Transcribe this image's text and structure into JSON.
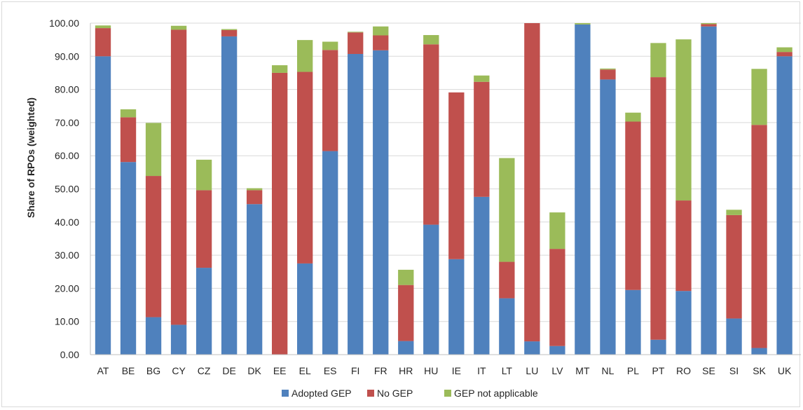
{
  "chart_data": {
    "type": "bar",
    "stacked": true,
    "title": "",
    "xlabel": "",
    "ylabel": "Share of RPOs (weighted)",
    "ylim": [
      0,
      100
    ],
    "ytick_step": 10,
    "ytick_format": "0.00",
    "grid": "horizontal",
    "legend_position": "bottom",
    "categories": [
      "AT",
      "BE",
      "BG",
      "CY",
      "CZ",
      "DE",
      "DK",
      "EE",
      "EL",
      "ES",
      "FI",
      "FR",
      "HR",
      "HU",
      "IE",
      "IT",
      "LT",
      "LU",
      "LV",
      "MT",
      "NL",
      "PL",
      "PT",
      "RO",
      "SE",
      "SI",
      "SK",
      "UK"
    ],
    "series": [
      {
        "name": "Adopted GEP",
        "color": "#4f81bd",
        "values": [
          90,
          58.1,
          11.3,
          9,
          26.2,
          96,
          45.4,
          0,
          27.5,
          61.4,
          90.7,
          91.8,
          4.1,
          39.2,
          28.8,
          47.6,
          17,
          4,
          2.6,
          99.6,
          83,
          19.5,
          4.5,
          19.2,
          99,
          10.9,
          2,
          90
        ]
      },
      {
        "name": "No GEP",
        "color": "#c0504d",
        "values": [
          8.5,
          13.5,
          42.6,
          89,
          23.4,
          1.9,
          4.2,
          85,
          57.8,
          30.5,
          6.5,
          4.5,
          16.9,
          54.4,
          50.3,
          34.7,
          11,
          96,
          29.3,
          0,
          3,
          50.8,
          79.2,
          27.3,
          0.7,
          31.2,
          67.3,
          1.3
        ]
      },
      {
        "name": "GEP not applicable",
        "color": "#9bbb59",
        "values": [
          0.8,
          2.4,
          16,
          1.2,
          9.2,
          0.3,
          0.6,
          2.3,
          9.6,
          2.5,
          0.2,
          2.7,
          4.6,
          2.8,
          0,
          1.9,
          31.3,
          0,
          11,
          0.4,
          0.3,
          2.7,
          10.3,
          48.6,
          0.3,
          1.6,
          16.9,
          1.4
        ]
      }
    ]
  }
}
